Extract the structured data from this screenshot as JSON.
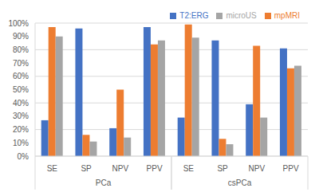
{
  "chart_data": {
    "type": "bar",
    "categories": [
      "SE",
      "SP",
      "NPV",
      "PPV",
      "SE",
      "SP",
      "NPV",
      "PPV"
    ],
    "groups": [
      "PCa",
      "csPCa"
    ],
    "series": [
      {
        "name": "T2:ERG",
        "color": "#4472c4",
        "values": [
          27,
          96,
          21,
          97,
          29,
          87,
          39,
          81
        ]
      },
      {
        "name": "mpMRI",
        "color": "#ed7d31",
        "values": [
          97,
          16,
          50,
          84,
          99,
          13,
          83,
          66
        ]
      },
      {
        "name": "microUS",
        "color": "#a5a5a5",
        "values": [
          90,
          11,
          14,
          87,
          89,
          9,
          29,
          68
        ]
      }
    ],
    "ylim": [
      0,
      100
    ],
    "yticks": [
      {
        "value": 0,
        "label": "0%"
      },
      {
        "value": 10,
        "label": "10%"
      },
      {
        "value": 20,
        "label": "20%"
      },
      {
        "value": 30,
        "label": "30%"
      },
      {
        "value": 40,
        "label": "40%"
      },
      {
        "value": 50,
        "label": "50%"
      },
      {
        "value": 60,
        "label": "60%"
      },
      {
        "value": 70,
        "label": "70%"
      },
      {
        "value": 80,
        "label": "80%"
      },
      {
        "value": 90,
        "label": "90%"
      },
      {
        "value": 100,
        "label": "100%"
      }
    ],
    "grid": true,
    "legend": "upper right"
  }
}
